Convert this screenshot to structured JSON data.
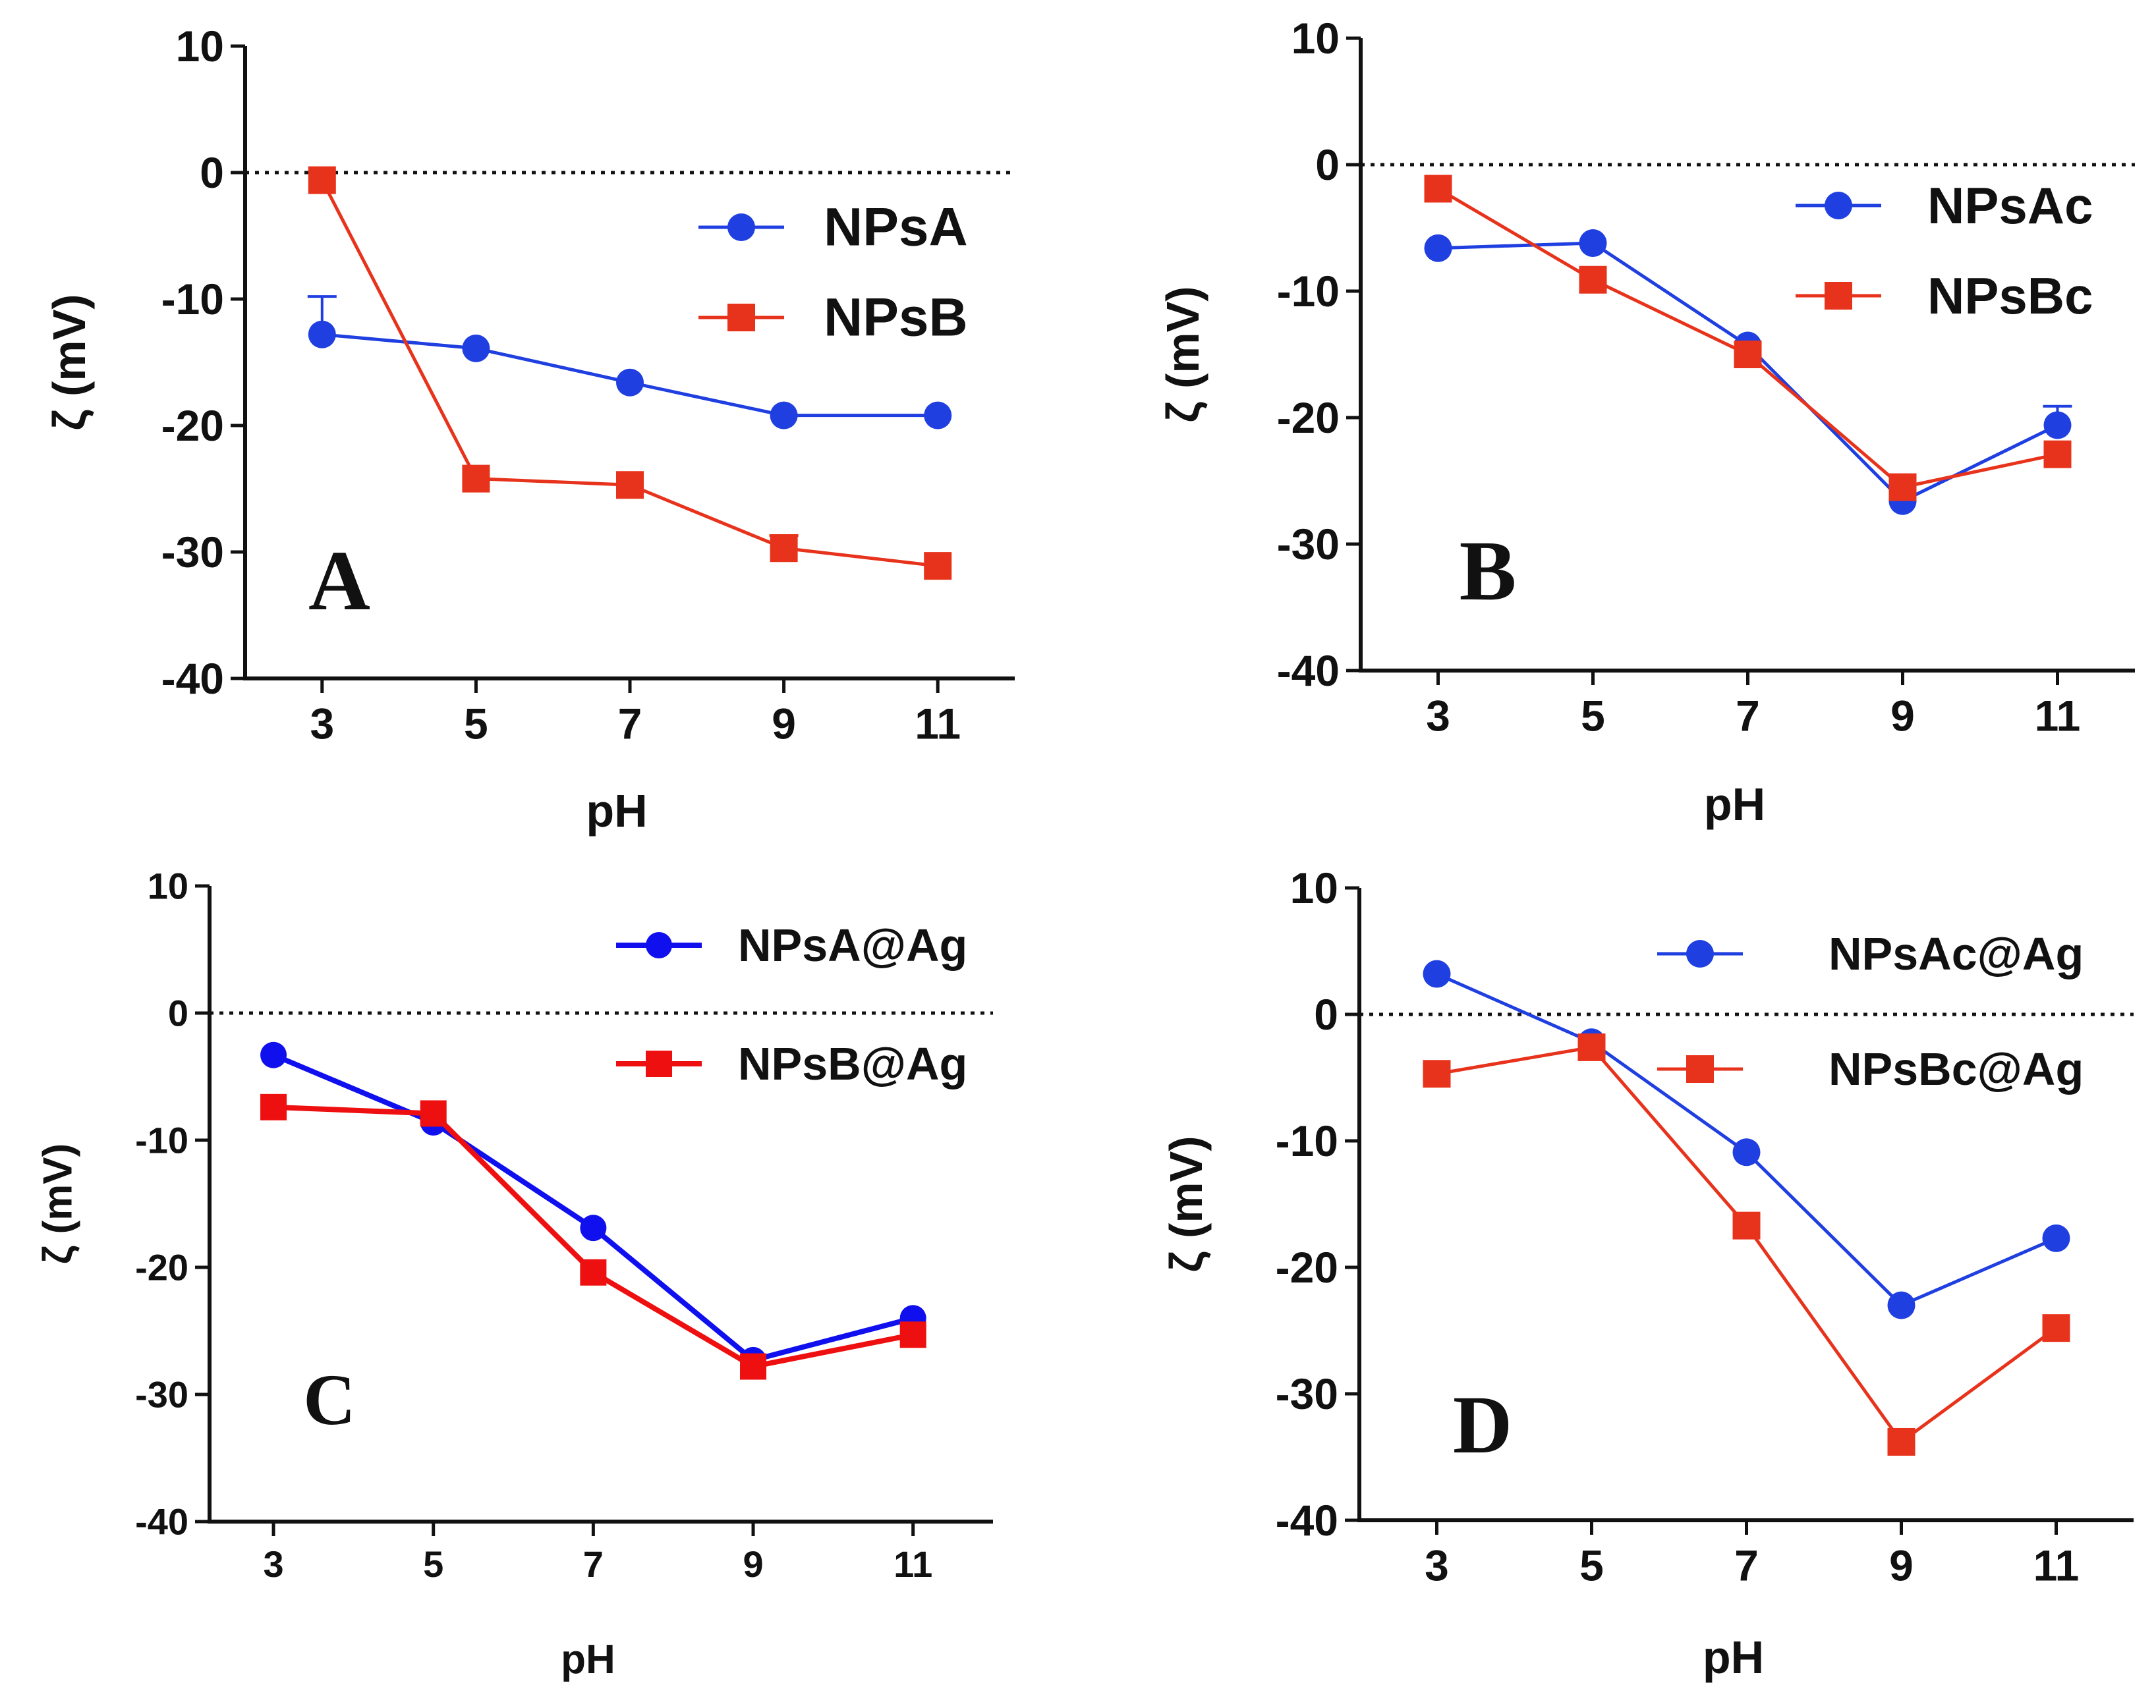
{
  "chart_data": [
    {
      "type": "line",
      "panel_label": "A",
      "xlabel": "pH",
      "ylabel": "ζ (mV)",
      "x": [
        3,
        5,
        7,
        9,
        11
      ],
      "x_ticks": [
        "3",
        "5",
        "7",
        "9",
        "11"
      ],
      "ylim": [
        -40,
        10
      ],
      "y_ticks": [
        "10",
        "0",
        "-10",
        "-20",
        "-30",
        "-40"
      ],
      "zero_reference_line": "dotted",
      "legend_position": "top-right",
      "series": [
        {
          "name": "NPsA",
          "marker": "circle",
          "color": "#1f3fe0",
          "values": [
            -12.8,
            -13.9,
            -16.6,
            -19.2,
            -19.2
          ],
          "errors": [
            3.0,
            0,
            0,
            0,
            0
          ]
        },
        {
          "name": "NPsB",
          "marker": "square",
          "color": "#e8331c",
          "values": [
            -0.6,
            -24.2,
            -24.7,
            -29.7,
            -31.1
          ],
          "errors": [
            0,
            0,
            0,
            1.0,
            0
          ]
        }
      ]
    },
    {
      "type": "line",
      "panel_label": "B",
      "xlabel": "pH",
      "ylabel": "ζ (mV)",
      "x": [
        3,
        5,
        7,
        9,
        11
      ],
      "x_ticks": [
        "3",
        "5",
        "7",
        "9",
        "11"
      ],
      "ylim": [
        -40,
        10
      ],
      "y_ticks": [
        "10",
        "0",
        "-10",
        "-20",
        "-30",
        "-40"
      ],
      "zero_reference_line": "dotted",
      "legend_position": "top-right",
      "series": [
        {
          "name": "NPsAc",
          "marker": "circle",
          "color": "#1f3fe0",
          "values": [
            -6.6,
            -6.2,
            -14.3,
            -26.6,
            -20.6
          ],
          "errors": [
            0,
            0,
            0,
            0,
            1.5
          ]
        },
        {
          "name": "NPsBc",
          "marker": "square",
          "color": "#e8331c",
          "values": [
            -1.9,
            -9.1,
            -15.0,
            -25.5,
            -22.9
          ],
          "errors": [
            0,
            0,
            0,
            0,
            0
          ]
        }
      ]
    },
    {
      "type": "line",
      "panel_label": "C",
      "xlabel": "pH",
      "ylabel": "ζ (mV)",
      "x": [
        3,
        5,
        7,
        9,
        11
      ],
      "x_ticks": [
        "3",
        "5",
        "7",
        "9",
        "11"
      ],
      "ylim": [
        -40,
        10
      ],
      "y_ticks": [
        "10",
        "0",
        "-10",
        "-20",
        "-30",
        "-40"
      ],
      "zero_reference_line": "dotted",
      "legend_position": "top-right",
      "series": [
        {
          "name": "NPsA@Ag",
          "marker": "circle",
          "color": "#1010ee",
          "values": [
            -3.3,
            -8.6,
            -16.9,
            -27.3,
            -24.0
          ],
          "errors": [
            0,
            0,
            0,
            0,
            0
          ]
        },
        {
          "name": "NPsB@Ag",
          "marker": "square",
          "color": "#ee1010",
          "values": [
            -7.4,
            -7.9,
            -20.4,
            -27.8,
            -25.3
          ],
          "errors": [
            0,
            0,
            0,
            0,
            0
          ]
        }
      ]
    },
    {
      "type": "line",
      "panel_label": "D",
      "xlabel": "pH",
      "ylabel": "ζ (mV)",
      "x": [
        3,
        5,
        7,
        9,
        11
      ],
      "x_ticks": [
        "3",
        "5",
        "7",
        "9",
        "11"
      ],
      "ylim": [
        -40,
        10
      ],
      "y_ticks": [
        "10",
        "0",
        "-10",
        "-20",
        "-30",
        "-40"
      ],
      "zero_reference_line": "dotted",
      "legend_position": "top-right",
      "series": [
        {
          "name": "NPsAc@Ag",
          "marker": "circle",
          "color": "#1f3fe0",
          "values": [
            3.2,
            -2.2,
            -10.9,
            -23.0,
            -17.7
          ],
          "errors": [
            0,
            0,
            0,
            0,
            0
          ]
        },
        {
          "name": "NPsBc@Ag",
          "marker": "square",
          "color": "#e8331c",
          "values": [
            -4.7,
            -2.6,
            -16.7,
            -33.8,
            -24.8
          ],
          "errors": [
            0,
            0,
            0,
            0,
            0
          ]
        }
      ]
    }
  ]
}
